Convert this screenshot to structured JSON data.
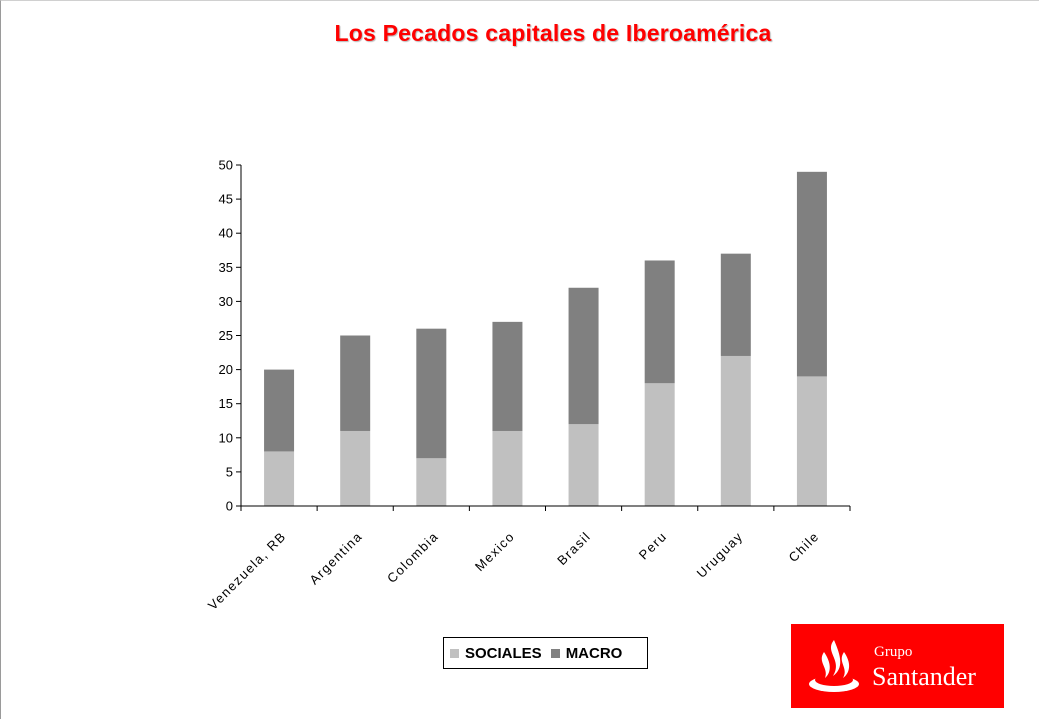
{
  "slide": {
    "title": "Los Pecados capitales de Iberoamérica"
  },
  "logo": {
    "line1": "Grupo",
    "line2": "Santander",
    "color": "#ff0000",
    "icon": "flame-icon"
  },
  "legend": {
    "items": [
      {
        "label": "SOCIALES",
        "color": "#c0c0c0"
      },
      {
        "label": "MACRO",
        "color": "#808080"
      }
    ]
  },
  "chart_data": {
    "type": "bar",
    "stacked": true,
    "categories": [
      "Venezuela, RB",
      "Argentina",
      "Colombia",
      "Mexico",
      "Brasil",
      "Peru",
      "Uruguay",
      "Chile"
    ],
    "series": [
      {
        "name": "SOCIALES",
        "color": "#c0c0c0",
        "values": [
          8,
          11,
          7,
          11,
          12,
          18,
          22,
          19
        ]
      },
      {
        "name": "MACRO",
        "color": "#808080",
        "values": [
          12,
          14,
          19,
          16,
          20,
          18,
          15,
          30
        ]
      }
    ],
    "ylim": [
      0,
      50
    ],
    "yticks": [
      0,
      5,
      10,
      15,
      20,
      25,
      30,
      35,
      40,
      45,
      50
    ],
    "legend_position": "bottom",
    "grid": false
  }
}
